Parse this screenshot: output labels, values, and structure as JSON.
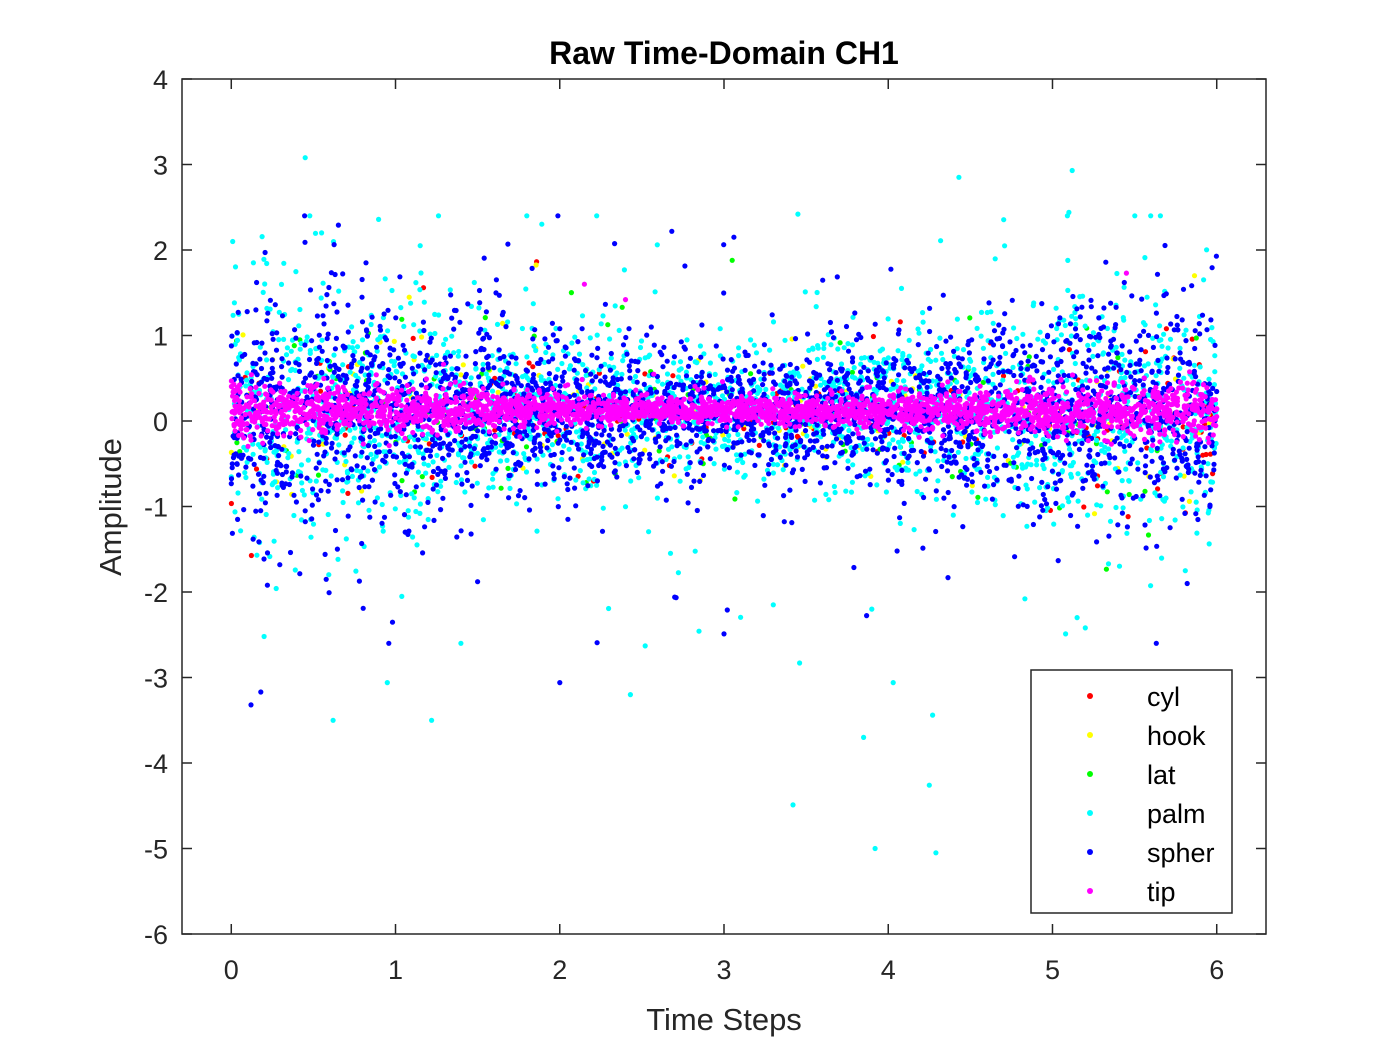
{
  "chart_data": {
    "type": "scatter",
    "title": "Raw Time-Domain CH1",
    "xlabel": "Time Steps",
    "ylabel": "Amplitude",
    "xlim": [
      -0.3,
      6.3
    ],
    "ylim": [
      -6,
      4
    ],
    "xticks": [
      0,
      1,
      2,
      3,
      4,
      5,
      6
    ],
    "yticks": [
      -6,
      -5,
      -4,
      -3,
      -2,
      -1,
      0,
      1,
      2,
      3,
      4
    ],
    "grid": false,
    "legend_position": "bottom-right",
    "series": [
      {
        "name": "cyl",
        "color": "#ff0000",
        "count": 150,
        "center": 0.1,
        "spread": 0.45,
        "tail": 0.02
      },
      {
        "name": "hook",
        "color": "#ffff00",
        "count": 150,
        "center": 0.1,
        "spread": 0.45,
        "tail": 0.02
      },
      {
        "name": "lat",
        "color": "#00ff00",
        "count": 150,
        "center": 0.1,
        "spread": 0.5,
        "tail": 0.03
      },
      {
        "name": "palm",
        "color": "#00ffff",
        "count": 2200,
        "center": 0.1,
        "spread": 0.55,
        "tail": 0.06
      },
      {
        "name": "spher",
        "color": "#0000ff",
        "count": 2800,
        "center": 0.1,
        "spread": 0.5,
        "tail": 0.05
      },
      {
        "name": "tip",
        "color": "#ff00ff",
        "count": 2800,
        "center": 0.13,
        "spread": 0.12,
        "tail": 0.004
      }
    ],
    "outliers": {
      "palm": [
        [
          0.45,
          3.08
        ],
        [
          0.55,
          2.2
        ],
        [
          1.15,
          2.05
        ],
        [
          3.45,
          2.42
        ],
        [
          4.43,
          2.85
        ],
        [
          5.12,
          2.93
        ],
        [
          5.1,
          2.44
        ],
        [
          0.2,
          -2.52
        ],
        [
          0.62,
          -3.5
        ],
        [
          0.95,
          -3.06
        ],
        [
          1.22,
          -3.5
        ],
        [
          2.43,
          -3.2
        ],
        [
          2.52,
          -2.63
        ],
        [
          3.42,
          -4.49
        ],
        [
          3.46,
          -2.83
        ],
        [
          3.85,
          -3.7
        ],
        [
          3.92,
          -5.0
        ],
        [
          4.03,
          -3.06
        ],
        [
          4.25,
          -4.26
        ],
        [
          4.27,
          -3.44
        ],
        [
          4.29,
          -5.05
        ],
        [
          5.08,
          -2.49
        ],
        [
          5.15,
          -2.3
        ],
        [
          5.2,
          -2.42
        ],
        [
          3.3,
          -2.15
        ],
        [
          3.9,
          -2.2
        ]
      ],
      "spher": [
        [
          0.12,
          -3.32
        ],
        [
          0.18,
          -3.17
        ],
        [
          0.22,
          -1.92
        ],
        [
          1.5,
          -1.88
        ],
        [
          2.0,
          -3.06
        ],
        [
          3.0,
          -2.49
        ],
        [
          3.02,
          -2.21
        ],
        [
          3.06,
          2.15
        ],
        [
          2.7,
          -2.06
        ],
        [
          0.82,
          1.85
        ],
        [
          5.82,
          -1.9
        ]
      ],
      "tip": [
        [
          5.45,
          1.73
        ],
        [
          2.15,
          1.6
        ],
        [
          2.4,
          1.42
        ]
      ],
      "lat": [
        [
          3.05,
          1.88
        ],
        [
          2.38,
          1.33
        ]
      ]
    }
  }
}
